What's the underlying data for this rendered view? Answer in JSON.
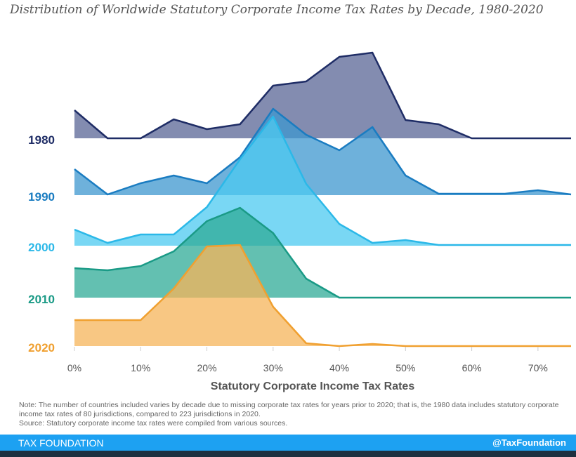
{
  "chart_data": {
    "type": "area",
    "title": "Distribution of Worldwide Statutory Corporate Income Tax Rates by Decade, 1980-2020",
    "xlabel": "Statutory Corporate Income Tax Rates",
    "ylabel": "",
    "x": [
      0,
      5,
      10,
      15,
      20,
      25,
      30,
      35,
      40,
      45,
      50,
      55,
      60,
      65,
      70,
      75
    ],
    "xlim": [
      0,
      75
    ],
    "xticks": [
      "0%",
      "10%",
      "20%",
      "30%",
      "40%",
      "50%",
      "60%",
      "70%"
    ],
    "grid": false,
    "series": [
      {
        "name": "1980",
        "line": "#1f2d66",
        "fill": "#5a6595",
        "values": [
          40,
          0,
          0,
          27,
          13,
          20,
          75,
          81,
          116,
          122,
          26,
          20,
          0,
          0,
          0,
          0
        ]
      },
      {
        "name": "1990",
        "line": "#1a7cc1",
        "fill": "#3d97cf",
        "values": [
          37,
          1,
          17,
          28,
          17,
          54,
          123,
          86,
          64,
          97,
          28,
          2,
          2,
          2,
          7,
          1
        ]
      },
      {
        "name": "2000",
        "line": "#2bb8e8",
        "fill": "#4cc9f0",
        "values": [
          23,
          4,
          16,
          16,
          55,
          123,
          184,
          88,
          31,
          4,
          8,
          1,
          1,
          1,
          1,
          1
        ]
      },
      {
        "name": "2010",
        "line": "#1a9a86",
        "fill": "#2fab97",
        "values": [
          42,
          39,
          45,
          66,
          109,
          128,
          92,
          27,
          0,
          0,
          0,
          0,
          0,
          0,
          0,
          0
        ]
      },
      {
        "name": "2020",
        "line": "#f0a030",
        "fill": "#f5b45a",
        "values": [
          37,
          37,
          37,
          82,
          142,
          144,
          56,
          4,
          0,
          3,
          0,
          0,
          0,
          0,
          0,
          0
        ]
      }
    ]
  },
  "note": "Note: The number of countries included varies by decade due to missing corporate tax rates for years prior to 2020; that is, the 1980 data includes statutory corporate income tax rates of 80 jurisdictions, compared to 223 jurisdictions in 2020.",
  "source": "Source: Statutory corporate income tax rates were compiled from various sources.",
  "footer": {
    "brand": "TAX FOUNDATION",
    "handle": "@TaxFoundation"
  }
}
